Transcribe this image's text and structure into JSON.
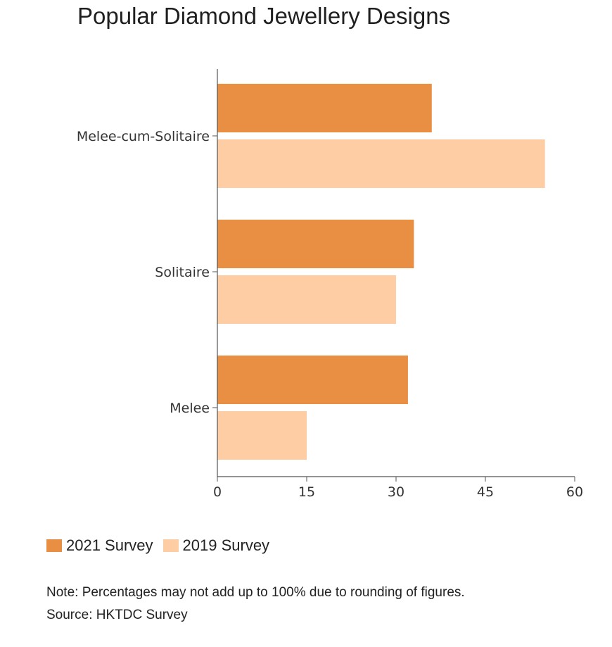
{
  "title": "Popular Diamond Jewellery Designs",
  "chart_data": {
    "type": "bar",
    "orientation": "horizontal",
    "title": "Popular Diamond Jewellery Designs",
    "categories": [
      "Melee-cum-Solitaire",
      "Solitaire",
      "Melee"
    ],
    "series": [
      {
        "name": "2021 Survey",
        "color": "#e88f43",
        "values": [
          36,
          33,
          32
        ]
      },
      {
        "name": "2019 Survey",
        "color": "#fecda3",
        "values": [
          55,
          30,
          15
        ]
      }
    ],
    "x_ticks": [
      "0",
      "15",
      "30",
      "45",
      "60"
    ],
    "xlim": [
      0,
      60
    ],
    "xlabel": "",
    "ylabel": "",
    "grid": false,
    "legend_position": "bottom-left"
  },
  "legend": {
    "items": [
      {
        "label": "2021 Survey",
        "color": "#e88f43"
      },
      {
        "label": "2019 Survey",
        "color": "#fecda3"
      }
    ]
  },
  "notes": {
    "note": "Note: Percentages may not add up to 100% due to rounding of figures.",
    "source": "Source: HKTDC Survey"
  }
}
